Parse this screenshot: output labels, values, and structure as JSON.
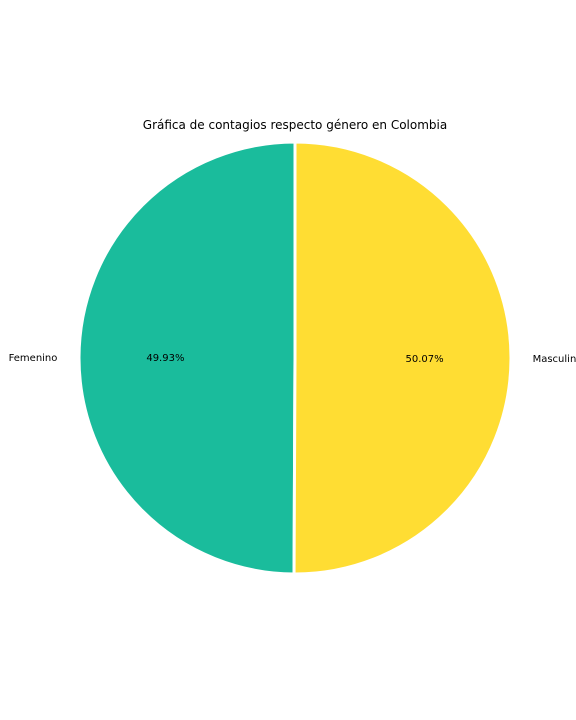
{
  "chart_data": {
    "type": "pie",
    "title": "Gráfica de contagios respecto género en Colombia",
    "labels": [
      "Femenino",
      "Masculino"
    ],
    "values": [
      49.93,
      50.07
    ],
    "percent_labels": [
      "49.93%",
      "50.07%"
    ],
    "colors": [
      "#1ABC9C",
      "#FFDD33"
    ],
    "start_angle_deg": 90,
    "direction": "counterclockwise",
    "legend": "none"
  }
}
